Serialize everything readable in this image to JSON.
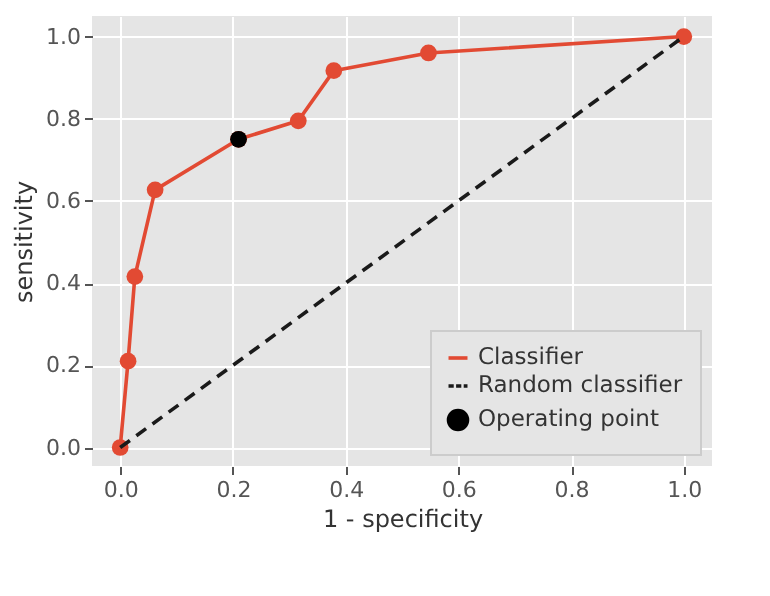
{
  "chart_data": {
    "type": "line",
    "xlabel": "1 - specificity",
    "ylabel": "sensitivity",
    "xlim": [
      -0.05,
      1.05
    ],
    "ylim": [
      -0.045,
      1.05
    ],
    "xticks": [
      {
        "value": 0,
        "label": "0.0"
      },
      {
        "value": 0.2,
        "label": "0.2"
      },
      {
        "value": 0.4,
        "label": "0.4"
      },
      {
        "value": 0.6,
        "label": "0.6"
      },
      {
        "value": 0.8,
        "label": "0.8"
      },
      {
        "value": 1,
        "label": "1.0"
      }
    ],
    "yticks": [
      {
        "value": 0,
        "label": "0.0"
      },
      {
        "value": 0.2,
        "label": "0.2"
      },
      {
        "value": 0.4,
        "label": "0.4"
      },
      {
        "value": 0.6,
        "label": "0.6"
      },
      {
        "value": 0.8,
        "label": "0.8"
      },
      {
        "value": 1,
        "label": "1.0"
      }
    ],
    "grid": true,
    "legend": "bottom right",
    "series": [
      {
        "name": "Classifier",
        "color": "#e24a33",
        "marker": "circle",
        "line_style": "solid",
        "x": [
          0,
          0.014,
          0.026,
          0.062,
          0.21,
          0.316,
          0.379,
          0.547,
          1
        ],
        "values": [
          0,
          0.21,
          0.416,
          0.627,
          0.75,
          0.795,
          0.917,
          0.96,
          1
        ]
      },
      {
        "name": "Random classifier",
        "color": "#1a1a1a",
        "marker": "none",
        "line_style": "dashed",
        "x": [
          0,
          1
        ],
        "values": [
          0,
          1
        ]
      },
      {
        "name": "Operating point",
        "type": "scatter",
        "color": "#000000",
        "marker": "circle",
        "x": [
          0.21
        ],
        "values": [
          0.75
        ]
      }
    ]
  }
}
